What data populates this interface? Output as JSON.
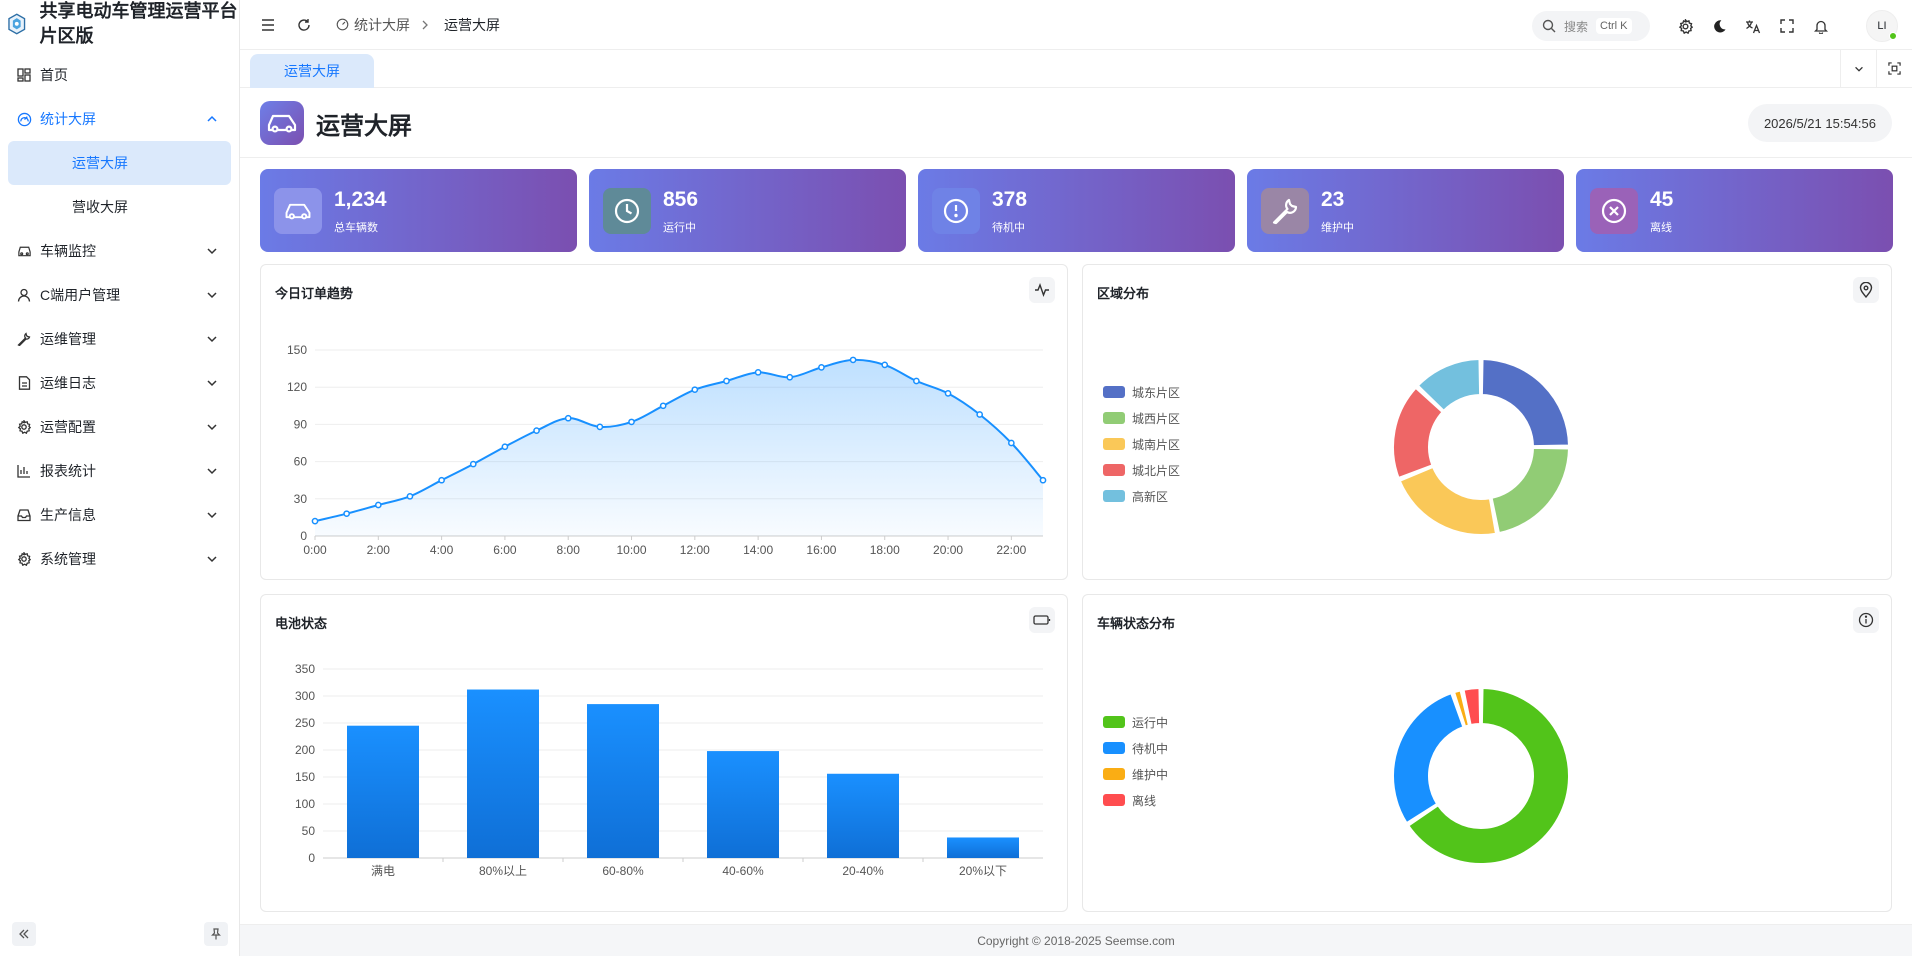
{
  "app": {
    "title": "共享电动车管理运营平台片区版"
  },
  "sidebar": {
    "items": [
      {
        "label": "首页",
        "icon": "dashboard-icon",
        "expandable": false
      },
      {
        "label": "统计大屏",
        "icon": "gauge-icon",
        "expandable": true,
        "open": true,
        "children": [
          {
            "label": "运营大屏",
            "active": true
          },
          {
            "label": "营收大屏",
            "active": false
          }
        ]
      },
      {
        "label": "车辆监控",
        "icon": "car-icon",
        "expandable": true
      },
      {
        "label": "C端用户管理",
        "icon": "user-icon",
        "expandable": true
      },
      {
        "label": "运维管理",
        "icon": "wrench-icon",
        "expandable": true
      },
      {
        "label": "运维日志",
        "icon": "file-icon",
        "expandable": true
      },
      {
        "label": "运营配置",
        "icon": "gear-icon",
        "expandable": true
      },
      {
        "label": "报表统计",
        "icon": "bar-chart-icon",
        "expandable": true
      },
      {
        "label": "生产信息",
        "icon": "inbox-icon",
        "expandable": true
      },
      {
        "label": "系统管理",
        "icon": "gear-icon",
        "expandable": true
      }
    ]
  },
  "header": {
    "breadcrumb": [
      {
        "label": "统计大屏"
      },
      {
        "label": "运营大屏"
      }
    ],
    "search": {
      "placeholder": "搜索",
      "shortcut": "Ctrl K"
    },
    "avatar_initials": "LI"
  },
  "tabs": [
    {
      "label": "运营大屏",
      "active": true
    }
  ],
  "page": {
    "title": "运营大屏",
    "datetime": "2026/5/21 15:54:56"
  },
  "stats": [
    {
      "value": "1,234",
      "label": "总车辆数",
      "icon": "car-icon",
      "icon_bg": "#8c93ea"
    },
    {
      "value": "856",
      "label": "运行中",
      "icon": "clock-icon",
      "icon_bg": "#5f8a98"
    },
    {
      "value": "378",
      "label": "待机中",
      "icon": "info-icon",
      "icon_bg": "#6f82e6"
    },
    {
      "value": "23",
      "label": "维护中",
      "icon": "wrench-icon",
      "icon_bg": "#9a86a6"
    },
    {
      "value": "45",
      "label": "离线",
      "icon": "close-circle-icon",
      "icon_bg": "#9a62b8"
    }
  ],
  "cards": {
    "order_trend": {
      "title": "今日订单趋势",
      "icon": "activity-icon"
    },
    "region": {
      "title": "区域分布",
      "icon": "map-pin-icon"
    },
    "battery": {
      "title": "电池状态",
      "icon": "battery-icon"
    },
    "vehicle_status": {
      "title": "车辆状态分布",
      "icon": "info-icon"
    }
  },
  "chart_data": [
    {
      "type": "area",
      "title": "今日订单趋势",
      "x": [
        "0:00",
        "1:00",
        "2:00",
        "3:00",
        "4:00",
        "5:00",
        "6:00",
        "7:00",
        "8:00",
        "9:00",
        "10:00",
        "11:00",
        "12:00",
        "13:00",
        "14:00",
        "15:00",
        "16:00",
        "17:00",
        "18:00",
        "19:00",
        "20:00",
        "21:00",
        "22:00",
        "23:00"
      ],
      "x_tick_labels": [
        "0:00",
        "2:00",
        "4:00",
        "6:00",
        "8:00",
        "10:00",
        "12:00",
        "14:00",
        "16:00",
        "18:00",
        "20:00",
        "22:00"
      ],
      "values": [
        12,
        18,
        25,
        32,
        45,
        58,
        72,
        85,
        95,
        88,
        92,
        105,
        118,
        125,
        132,
        128,
        136,
        142,
        138,
        125,
        115,
        98,
        75,
        45
      ],
      "ylim": [
        0,
        150
      ],
      "yticks": [
        0,
        30,
        60,
        90,
        120,
        150
      ],
      "color": "#1890ff",
      "grid": true
    },
    {
      "type": "pie",
      "title": "区域分布",
      "donut": true,
      "labels": [
        "城东片区",
        "城西片区",
        "城南片区",
        "城北片区",
        "高新区"
      ],
      "values": [
        25,
        22,
        22,
        18,
        13
      ],
      "colors": [
        "#5470c6",
        "#91cc75",
        "#fac858",
        "#ee6666",
        "#73c0de"
      ],
      "legend": "left"
    },
    {
      "type": "bar",
      "title": "电池状态",
      "categories": [
        "满电",
        "80%以上",
        "60-80%",
        "40-60%",
        "20-40%",
        "20%以下"
      ],
      "values": [
        245,
        312,
        285,
        198,
        156,
        38
      ],
      "ylim": [
        0,
        350
      ],
      "yticks": [
        0,
        50,
        100,
        150,
        200,
        250,
        300,
        350
      ],
      "color": "#1890ff",
      "grid": true
    },
    {
      "type": "pie",
      "title": "车辆状态分布",
      "donut": true,
      "labels": [
        "运行中",
        "待机中",
        "维护中",
        "离线"
      ],
      "values": [
        856,
        378,
        23,
        45
      ],
      "colors": [
        "#52c41a",
        "#1890ff",
        "#faad14",
        "#ff4d4f"
      ],
      "legend": "left"
    }
  ],
  "footer": {
    "copyright": "Copyright © 2018-2025 Seemse.com"
  }
}
